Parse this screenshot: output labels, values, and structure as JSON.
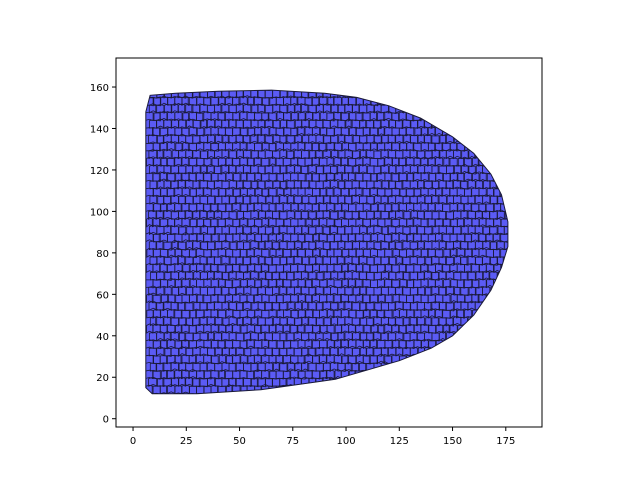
{
  "chart_data": {
    "type": "area",
    "title": "",
    "xlabel": "",
    "ylabel": "",
    "xlim": [
      -8,
      192
    ],
    "ylim": [
      -4,
      174
    ],
    "xticks": [
      0,
      25,
      50,
      75,
      100,
      125,
      150,
      175
    ],
    "yticks": [
      0,
      20,
      40,
      60,
      80,
      100,
      120,
      140,
      160
    ],
    "grid": false,
    "legend": "none",
    "fill_color": "#5B5BF5",
    "edge_color": "#1a1a3a",
    "mesh": {
      "cols": 50,
      "rows": 40
    },
    "series": [
      {
        "outline": [
          [
            6,
            15
          ],
          [
            9,
            12
          ],
          [
            30,
            12
          ],
          [
            60,
            14
          ],
          [
            95,
            19
          ],
          [
            125,
            28
          ],
          [
            140,
            34
          ],
          [
            150,
            40
          ],
          [
            160,
            50
          ],
          [
            168,
            62
          ],
          [
            173,
            73
          ],
          [
            176,
            83
          ],
          [
            176,
            95
          ],
          [
            173,
            108
          ],
          [
            168,
            118
          ],
          [
            160,
            128
          ],
          [
            150,
            136
          ],
          [
            135,
            145
          ],
          [
            120,
            151
          ],
          [
            105,
            155
          ],
          [
            90,
            157
          ],
          [
            65,
            158.5
          ],
          [
            40,
            158
          ],
          [
            20,
            157
          ],
          [
            8,
            156
          ],
          [
            6,
            148
          ]
        ]
      }
    ]
  }
}
